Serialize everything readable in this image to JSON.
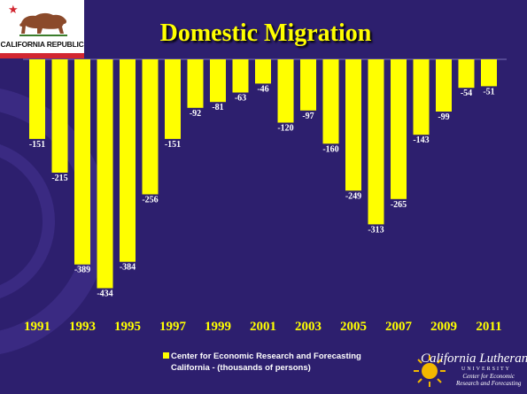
{
  "flag": {
    "label": "CALIFORNIA REPUBLIC"
  },
  "logo": {
    "name": "California Lutheran",
    "subtitle": "UNIVERSITY",
    "center_line1": "Center for Economic",
    "center_line2": "Research and Forecasting"
  },
  "legend": {
    "line1": "Center for Economic Research and Forecasting",
    "line2": "California - (thousands of persons)"
  },
  "colors": {
    "background": "#2d1f6e",
    "bar": "#ffff00",
    "title": "#ffff00",
    "label": "#ffffff"
  },
  "chart_data": {
    "type": "bar",
    "title": "Domestic Migration",
    "categories": [
      "1991",
      "1992",
      "1993",
      "1994",
      "1995",
      "1996",
      "1997",
      "1998",
      "1999",
      "2000",
      "2001",
      "2002",
      "2003",
      "2004",
      "2005",
      "2006",
      "2007",
      "2008",
      "2009",
      "2010",
      "2011"
    ],
    "x_tick_labels": [
      "1991",
      "1993",
      "1995",
      "1997",
      "1999",
      "2001",
      "2003",
      "2005",
      "2007",
      "2009",
      "2011"
    ],
    "series": [
      {
        "name": "Center for Economic Research and Forecasting California - (thousands of persons)",
        "values": [
          -151,
          -215,
          -389,
          -434,
          -384,
          -256,
          -151,
          -92,
          -81,
          -63,
          -46,
          -120,
          -97,
          -160,
          -249,
          -313,
          -265,
          -143,
          -99,
          -54,
          -51
        ],
        "data_labels": [
          "-151",
          "-215",
          "-389",
          "-434",
          "-384",
          "-256",
          "-151",
          "-92",
          "-81",
          "-63",
          "-46",
          "-120",
          "-97",
          "-160",
          "-249",
          "-313",
          "-265",
          "-143",
          "-99",
          "-54",
          "-51"
        ]
      }
    ],
    "ylim": [
      -450,
      0
    ],
    "grid": false,
    "legend_position": "bottom"
  }
}
